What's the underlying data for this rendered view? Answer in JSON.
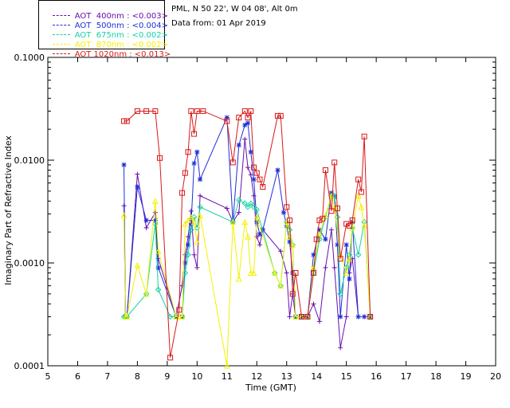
{
  "header": {
    "site": "PML, N 50 22', W 04 08', Alt 0m",
    "date": "Data from: 01 Apr 2019"
  },
  "legend": [
    {
      "label": "AOT  400nm : <0.003>",
      "color": "#6a0dad"
    },
    {
      "label": "AOT  500nm : <0.004>",
      "color": "#1e2fd6"
    },
    {
      "label": "AOT  675nm : <0.002>",
      "color": "#12d1a3"
    },
    {
      "label": "AOT  870nm : <0.002>",
      "color": "#f2f200"
    },
    {
      "label": "AOT 1020nm : <0.013>",
      "color": "#d81818"
    }
  ],
  "chart_data": {
    "type": "line",
    "title": "",
    "xlabel": "Time (GMT)",
    "ylabel": "Imaginary Part of Refractive Index",
    "xlim": [
      5,
      20
    ],
    "ylim": [
      0.0001,
      0.1
    ],
    "yscale": "log",
    "x_ticks": [
      "5",
      "6",
      "7",
      "8",
      "9",
      "10",
      "11",
      "12",
      "13",
      "14",
      "15",
      "16",
      "17",
      "18",
      "19",
      "20"
    ],
    "y_ticks": [
      "0.0001",
      "0.0010",
      "0.0100",
      "0.1000"
    ],
    "grid": false,
    "series": [
      {
        "name": "AOT  400nm : <0.003>",
        "color": "#6a0dad",
        "marker": "plus",
        "x": [
          7.55,
          7.6,
          7.65,
          8.0,
          8.3,
          8.6,
          8.7,
          9.3,
          9.5,
          9.6,
          9.7,
          9.8,
          9.9,
          10.0,
          10.1,
          11.0,
          11.2,
          11.4,
          11.6,
          11.7,
          11.8,
          11.9,
          12.0,
          12.1,
          12.2,
          12.8,
          13.0,
          13.1,
          13.2,
          13.3,
          13.5,
          13.7,
          13.9,
          14.1,
          14.3,
          14.5,
          14.6,
          14.8,
          15.0,
          15.1,
          15.2,
          15.4,
          15.6,
          15.8
        ],
        "y": [
          0.0036,
          0.0003,
          0.0003,
          0.0073,
          0.0022,
          0.0031,
          0.0011,
          0.0003,
          0.0006,
          0.0012,
          0.0018,
          0.0032,
          0.0012,
          0.0009,
          0.0045,
          0.0034,
          0.0025,
          0.0031,
          0.016,
          0.0085,
          0.0072,
          0.0045,
          0.0018,
          0.0015,
          0.0021,
          0.0013,
          0.0008,
          0.0003,
          0.0005,
          0.0003,
          0.0003,
          0.0003,
          0.0004,
          0.00027,
          0.0009,
          0.0021,
          0.0009,
          0.00015,
          0.0003,
          0.0008,
          0.0011,
          0.0003,
          0.0003,
          0.0003
        ]
      },
      {
        "name": "AOT  500nm : <0.004>",
        "color": "#1e2fd6",
        "marker": "asterisk",
        "x": [
          7.55,
          7.6,
          7.65,
          8.0,
          8.3,
          8.6,
          8.7,
          9.3,
          9.5,
          9.6,
          9.7,
          9.8,
          9.9,
          10.0,
          10.1,
          11.0,
          11.2,
          11.4,
          11.6,
          11.7,
          11.8,
          11.9,
          12.0,
          12.1,
          12.2,
          12.7,
          12.9,
          13.0,
          13.1,
          13.2,
          13.3,
          13.5,
          13.7,
          13.9,
          14.1,
          14.3,
          14.5,
          14.6,
          14.7,
          14.8,
          15.0,
          15.1,
          15.2,
          15.4,
          15.6,
          15.8
        ],
        "y": [
          0.009,
          0.0003,
          0.0003,
          0.0055,
          0.0026,
          0.0026,
          0.0009,
          0.0003,
          0.0003,
          0.001,
          0.0015,
          0.0024,
          0.0093,
          0.012,
          0.0065,
          0.026,
          0.0025,
          0.014,
          0.022,
          0.023,
          0.012,
          0.0065,
          0.0025,
          0.0019,
          0.0021,
          0.008,
          0.0031,
          0.0023,
          0.0016,
          0.0008,
          0.0003,
          0.0003,
          0.0003,
          0.0012,
          0.0021,
          0.0017,
          0.0048,
          0.0044,
          0.0015,
          0.0003,
          0.0015,
          0.0007,
          0.0025,
          0.0003,
          0.0003,
          0.0003
        ]
      },
      {
        "name": "AOT  675nm : <0.002>",
        "color": "#12d1a3",
        "marker": "diamond",
        "x": [
          7.55,
          7.6,
          7.65,
          8.3,
          8.6,
          8.7,
          9.1,
          9.3,
          9.5,
          9.6,
          9.7,
          9.8,
          9.9,
          10.0,
          10.1,
          11.2,
          11.4,
          11.6,
          11.7,
          11.8,
          11.9,
          12.0,
          12.6,
          12.8,
          13.0,
          13.1,
          13.2,
          13.3,
          13.5,
          13.7,
          13.9,
          14.1,
          14.3,
          14.5,
          14.6,
          14.7,
          14.8,
          15.0,
          15.1,
          15.2,
          15.4,
          15.6,
          15.8
        ],
        "y": [
          0.0003,
          0.0003,
          0.0003,
          0.0005,
          0.0024,
          0.00055,
          0.0003,
          0.0003,
          0.0003,
          0.0008,
          0.0012,
          0.0021,
          0.0028,
          0.0022,
          0.0035,
          0.0025,
          0.0041,
          0.0038,
          0.0035,
          0.0038,
          0.0035,
          0.0033,
          0.0008,
          0.0006,
          0.0025,
          0.0021,
          0.0015,
          0.0003,
          0.0003,
          0.0003,
          0.0008,
          0.0017,
          0.0028,
          0.0045,
          0.0045,
          0.0028,
          0.0005,
          0.0009,
          0.0012,
          0.0022,
          0.0012,
          0.0025,
          0.0003
        ]
      },
      {
        "name": "AOT  870nm : <0.002>",
        "color": "#f2f200",
        "marker": "triangle",
        "x": [
          7.55,
          7.6,
          7.65,
          8.0,
          8.3,
          8.6,
          8.7,
          9.3,
          9.4,
          9.5,
          9.6,
          9.7,
          9.8,
          9.9,
          10.0,
          10.1,
          11.0,
          11.2,
          11.4,
          11.6,
          11.7,
          11.8,
          11.9,
          12.0,
          12.6,
          12.8,
          13.0,
          13.1,
          13.2,
          13.3,
          13.5,
          13.7,
          13.9,
          14.1,
          14.3,
          14.5,
          14.6,
          14.8,
          15.0,
          15.1,
          15.2,
          15.4,
          15.5,
          15.6,
          15.8
        ],
        "y": [
          0.0029,
          0.0003,
          0.0003,
          0.00095,
          0.0005,
          0.004,
          0.0013,
          0.0003,
          0.0003,
          0.0003,
          0.0024,
          0.0026,
          0.0028,
          0.0025,
          0.0016,
          0.0029,
          0.0001,
          0.0025,
          0.0007,
          0.0025,
          0.0018,
          0.0008,
          0.0008,
          0.0028,
          0.0008,
          0.0006,
          0.0025,
          0.0018,
          0.0015,
          0.0003,
          0.0003,
          0.0003,
          0.0009,
          0.0019,
          0.0029,
          0.0045,
          0.0035,
          0.0012,
          0.0008,
          0.0011,
          0.0022,
          0.0045,
          0.0035,
          0.0023,
          0.0003
        ]
      },
      {
        "name": "AOT 1020nm : <0.013>",
        "color": "#d81818",
        "marker": "square",
        "x": [
          7.55,
          7.65,
          8.0,
          8.3,
          8.6,
          8.75,
          9.1,
          9.4,
          9.5,
          9.6,
          9.7,
          9.8,
          9.9,
          10.0,
          10.2,
          11.0,
          11.2,
          11.4,
          11.6,
          11.7,
          11.8,
          11.9,
          12.0,
          12.1,
          12.2,
          12.7,
          12.8,
          13.0,
          13.1,
          13.2,
          13.3,
          13.5,
          13.7,
          13.9,
          14.0,
          14.1,
          14.2,
          14.3,
          14.5,
          14.6,
          14.7,
          14.8,
          15.0,
          15.1,
          15.2,
          15.4,
          15.5,
          15.6,
          15.8
        ],
        "y": [
          0.024,
          0.024,
          0.03,
          0.03,
          0.03,
          0.0105,
          0.00012,
          0.00035,
          0.0048,
          0.0075,
          0.012,
          0.03,
          0.018,
          0.03,
          0.03,
          0.024,
          0.0095,
          0.026,
          0.03,
          0.026,
          0.03,
          0.0085,
          0.0075,
          0.0065,
          0.0055,
          0.027,
          0.027,
          0.0035,
          0.0026,
          0.0005,
          0.0008,
          0.0003,
          0.0003,
          0.0008,
          0.0017,
          0.0026,
          0.0027,
          0.008,
          0.0032,
          0.0095,
          0.0034,
          0.0011,
          0.0024,
          0.0023,
          0.0026,
          0.0065,
          0.0049,
          0.017,
          0.0003
        ]
      }
    ]
  }
}
